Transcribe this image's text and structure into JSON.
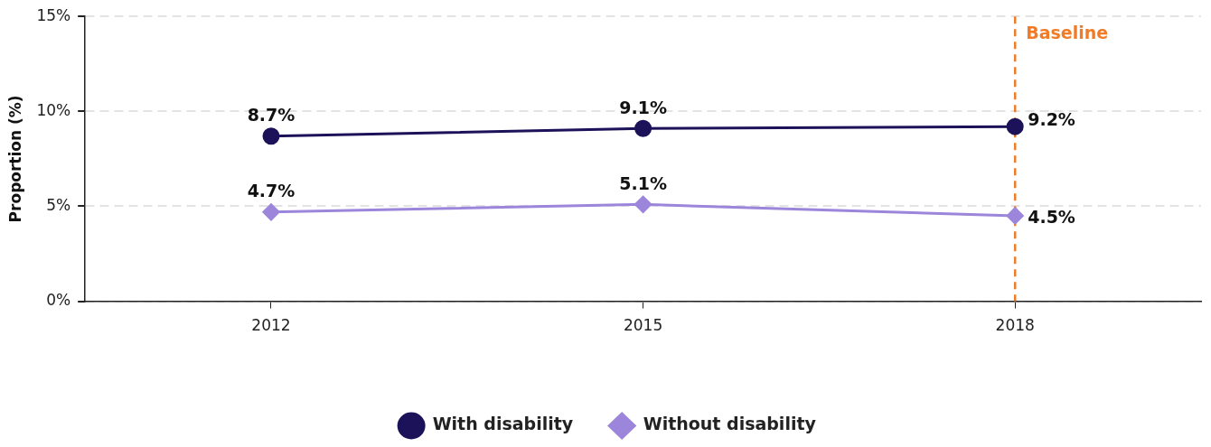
{
  "chart_data": {
    "type": "line",
    "ylabel": "Proportion (%)",
    "categories": [
      "2012",
      "2015",
      "2018"
    ],
    "series": [
      {
        "name": "With disability",
        "color": "#1c1259",
        "marker": "circle",
        "values": [
          8.7,
          9.1,
          9.2
        ],
        "value_labels": [
          "8.7%",
          "9.1%",
          "9.2%"
        ]
      },
      {
        "name": "Without disability",
        "color": "#9c86db",
        "marker": "diamond",
        "values": [
          4.7,
          5.1,
          4.5
        ],
        "value_labels": [
          "4.7%",
          "5.1%",
          "4.5%"
        ]
      }
    ],
    "ylim": [
      0,
      15
    ],
    "yticks": [
      {
        "value": 0,
        "label": "0%"
      },
      {
        "value": 5,
        "label": "5%"
      },
      {
        "value": 10,
        "label": "10%"
      },
      {
        "value": 15,
        "label": "15%"
      }
    ],
    "grid": "y",
    "legend": "bottom",
    "line_style": "solid",
    "ref_lines": [
      {
        "axis": "x",
        "value": "2018",
        "label": "Baseline",
        "color": "#f07c28",
        "line_style": "dashed"
      }
    ]
  }
}
